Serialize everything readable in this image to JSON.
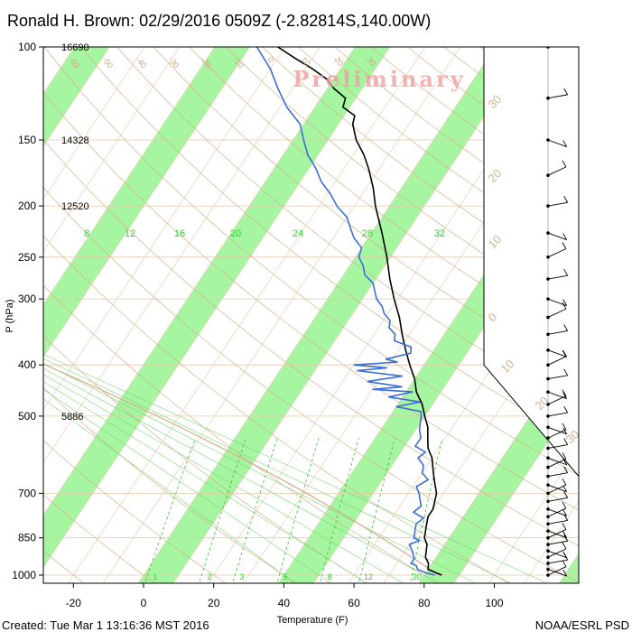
{
  "title": "Ronald H. Brown: 02/29/2016 0509Z (-2.82814S,140.00W)",
  "watermark": "Preliminary",
  "footer_left": "Created: Tue Mar  1 13:16:36 MST 2016",
  "footer_right": "NOAA/ESRL PSD",
  "colors": {
    "temperature": "#000000",
    "dewpoint": "#3a6fd8",
    "bands": "#a6f5a0",
    "isotherm": "#e6cfb5",
    "dry_adiabat": "#d2b48c",
    "moist_adiabat": "#7bd87b",
    "mixing_ratio": "#2fbf2f",
    "isobar": "#e8c8a8",
    "wind": "#000000"
  },
  "chart_data": {
    "type": "line",
    "subtype": "skew-T log-P sounding",
    "xlabel": "Temperature (F)",
    "ylabel": "P (hPa)",
    "x_ticks": [
      -20,
      0,
      20,
      40,
      60,
      80,
      100
    ],
    "y_ticks": [
      100,
      150,
      200,
      250,
      300,
      400,
      500,
      700,
      850,
      1000
    ],
    "ylim": [
      1000,
      100
    ],
    "height_labels": [
      {
        "p": 100,
        "z": "16690"
      },
      {
        "p": 150,
        "z": "14328"
      },
      {
        "p": 200,
        "z": "12520"
      },
      {
        "p": 500,
        "z": "5886"
      }
    ],
    "mixing_ratio_labels": [
      "8",
      "12",
      "16",
      "20",
      "24",
      "28",
      "32"
    ],
    "mixing_ratio_bottom_labels": [
      "1",
      "2",
      "3",
      "5",
      "8",
      "12",
      "20"
    ],
    "isotherm_labels_top": [
      "-60",
      "-50",
      "-40",
      "-30",
      "-20",
      "-10",
      "0",
      "10",
      "20",
      "30"
    ],
    "adiabat_labels": [
      "30",
      "20",
      "10",
      "0",
      "10",
      "20",
      "30"
    ],
    "series": [
      {
        "name": "Temperature",
        "points": [
          [
            1000,
            85
          ],
          [
            975,
            80
          ],
          [
            950,
            79
          ],
          [
            925,
            77
          ],
          [
            900,
            76
          ],
          [
            875,
            75
          ],
          [
            850,
            73
          ],
          [
            825,
            72
          ],
          [
            800,
            71
          ],
          [
            775,
            70
          ],
          [
            750,
            70
          ],
          [
            725,
            69
          ],
          [
            700,
            68
          ],
          [
            675,
            66
          ],
          [
            650,
            64
          ],
          [
            625,
            62
          ],
          [
            600,
            60
          ],
          [
            575,
            57
          ],
          [
            550,
            55
          ],
          [
            525,
            53
          ],
          [
            500,
            50
          ],
          [
            475,
            47
          ],
          [
            450,
            43
          ],
          [
            425,
            40
          ],
          [
            400,
            36
          ],
          [
            375,
            32
          ],
          [
            350,
            28
          ],
          [
            325,
            24
          ],
          [
            300,
            19
          ],
          [
            275,
            14
          ],
          [
            250,
            9
          ],
          [
            225,
            3
          ],
          [
            200,
            -4
          ],
          [
            185,
            -8
          ],
          [
            170,
            -13
          ],
          [
            160,
            -17
          ],
          [
            150,
            -22
          ],
          [
            140,
            -26
          ],
          [
            135,
            -27
          ],
          [
            130,
            -32
          ],
          [
            125,
            -33
          ],
          [
            120,
            -38
          ],
          [
            115,
            -42
          ],
          [
            110,
            -48
          ],
          [
            105,
            -55
          ],
          [
            100,
            -62
          ]
        ]
      },
      {
        "name": "Dewpoint",
        "points": [
          [
            1000,
            83
          ],
          [
            990,
            80
          ],
          [
            975,
            77
          ],
          [
            960,
            76
          ],
          [
            950,
            74
          ],
          [
            930,
            74
          ],
          [
            900,
            72
          ],
          [
            875,
            70
          ],
          [
            860,
            72
          ],
          [
            850,
            70
          ],
          [
            825,
            69
          ],
          [
            800,
            68
          ],
          [
            780,
            69
          ],
          [
            760,
            65
          ],
          [
            740,
            66
          ],
          [
            700,
            63
          ],
          [
            680,
            61
          ],
          [
            660,
            63
          ],
          [
            640,
            60
          ],
          [
            620,
            59
          ],
          [
            600,
            56
          ],
          [
            585,
            57
          ],
          [
            570,
            53
          ],
          [
            550,
            53
          ],
          [
            530,
            51
          ],
          [
            515,
            50
          ],
          [
            500,
            49
          ],
          [
            490,
            48
          ],
          [
            480,
            40
          ],
          [
            470,
            46
          ],
          [
            460,
            36
          ],
          [
            450,
            42
          ],
          [
            445,
            30
          ],
          [
            440,
            38
          ],
          [
            430,
            27
          ],
          [
            420,
            36
          ],
          [
            410,
            22
          ],
          [
            405,
            30
          ],
          [
            400,
            20
          ],
          [
            395,
            32
          ],
          [
            390,
            28
          ],
          [
            380,
            34
          ],
          [
            370,
            33
          ],
          [
            360,
            27
          ],
          [
            350,
            26
          ],
          [
            340,
            23
          ],
          [
            330,
            22
          ],
          [
            320,
            19
          ],
          [
            310,
            17
          ],
          [
            300,
            14
          ],
          [
            290,
            12
          ],
          [
            280,
            10
          ],
          [
            270,
            6
          ],
          [
            260,
            4
          ],
          [
            250,
            1
          ],
          [
            240,
            0
          ],
          [
            230,
            -4
          ],
          [
            220,
            -7
          ],
          [
            210,
            -10
          ],
          [
            200,
            -15
          ],
          [
            190,
            -19
          ],
          [
            180,
            -24
          ],
          [
            170,
            -28
          ],
          [
            160,
            -33
          ],
          [
            150,
            -37
          ],
          [
            140,
            -41
          ],
          [
            130,
            -48
          ],
          [
            120,
            -54
          ],
          [
            110,
            -60
          ],
          [
            100,
            -68
          ]
        ]
      }
    ],
    "wind_barbs": {
      "levels": [
        1000,
        975,
        950,
        925,
        900,
        875,
        850,
        825,
        800,
        775,
        750,
        725,
        700,
        675,
        650,
        625,
        600,
        575,
        550,
        525,
        500,
        475,
        450,
        425,
        400,
        375,
        350,
        325,
        300,
        275,
        250,
        225,
        200,
        175,
        150,
        125,
        100
      ]
    }
  }
}
